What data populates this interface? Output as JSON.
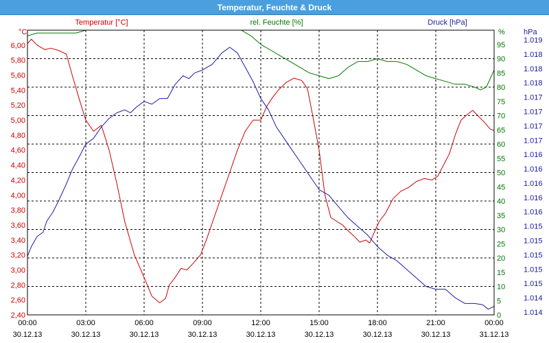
{
  "window": {
    "title": "Temperatur, Feuchte & Druck"
  },
  "chart_data": {
    "type": "line",
    "grid": true,
    "x_ticks": [
      {
        "time": "00:00",
        "date": "30.12.13"
      },
      {
        "time": "03:00",
        "date": "30.12.13"
      },
      {
        "time": "06:00",
        "date": "30.12.13"
      },
      {
        "time": "09:00",
        "date": "30.12.13"
      },
      {
        "time": "12:00",
        "date": "30.12.13"
      },
      {
        "time": "15:00",
        "date": "30.12.13"
      },
      {
        "time": "18:00",
        "date": "30.12.13"
      },
      {
        "time": "21:00",
        "date": "30.12.13"
      },
      {
        "time": "00:00",
        "date": "31.12.13"
      }
    ],
    "axes": {
      "temperature": {
        "unit": "°C",
        "label": "Temperatur [°C]",
        "color": "#cc0000",
        "ylim": [
          2.4,
          6.2
        ],
        "ticks": [
          "2,40",
          "2,60",
          "2,80",
          "3,00",
          "3,20",
          "3,40",
          "3,60",
          "3,80",
          "4,00",
          "4,20",
          "4,40",
          "4,60",
          "4,80",
          "5,00",
          "5,20",
          "5,40",
          "5,60",
          "5,80",
          "6,00"
        ]
      },
      "humidity": {
        "unit": "%",
        "label": "rel. Feuchte [%]",
        "color": "#007700",
        "ylim": [
          0,
          100
        ],
        "ticks": [
          "0",
          "5",
          "10",
          "15",
          "20",
          "25",
          "30",
          "35",
          "40",
          "45",
          "50",
          "55",
          "60",
          "65",
          "70",
          "75",
          "80",
          "85",
          "90",
          "95"
        ]
      },
      "pressure": {
        "unit": "hPa",
        "label": "Druck [hPa]",
        "color": "#1a1aa0",
        "ylim": [
          1014.0,
          1019.0
        ],
        "ticks": [
          "1.014",
          "1.014",
          "1.015",
          "1.015",
          "1.015",
          "1.015",
          "1.015",
          "1.016",
          "1.016",
          "1.016",
          "1.016",
          "1.016",
          "1.017",
          "1.017",
          "1.017",
          "1.017",
          "1.018",
          "1.018",
          "1.018",
          "1.019"
        ]
      }
    },
    "series": [
      {
        "name": "Temperatur [°C]",
        "axis": "temperature",
        "color": "#cc0000",
        "x": [
          0,
          0.2,
          0.5,
          0.9,
          1.2,
          1.6,
          2.0,
          2.3,
          2.7,
          3.0,
          3.4,
          3.8,
          4.2,
          4.6,
          5.0,
          5.5,
          6.0,
          6.4,
          6.8,
          7.1,
          7.3,
          7.6,
          7.9,
          8.2,
          8.5,
          8.9,
          9.2,
          9.6,
          10.0,
          10.4,
          10.8,
          11.2,
          11.6,
          12.0,
          12.3,
          12.6,
          12.9,
          13.3,
          13.7,
          14.1,
          14.4,
          14.7,
          15.0,
          15.3,
          15.6,
          15.9,
          16.2,
          16.5,
          16.8,
          17.1,
          17.4,
          17.6,
          17.8,
          18.1,
          18.4,
          18.8,
          19.2,
          19.6,
          20.0,
          20.4,
          20.8,
          21.1,
          21.4,
          21.7,
          22.0,
          22.3,
          22.6,
          22.9,
          23.2,
          23.5,
          23.8,
          24.0
        ],
        "y": [
          6.02,
          6.08,
          6.0,
          5.94,
          5.96,
          5.93,
          5.88,
          5.6,
          5.25,
          5.0,
          4.85,
          4.93,
          4.6,
          4.15,
          3.65,
          3.2,
          2.9,
          2.65,
          2.56,
          2.62,
          2.8,
          2.9,
          3.02,
          3.0,
          3.08,
          3.2,
          3.4,
          3.7,
          4.0,
          4.3,
          4.6,
          4.85,
          5.0,
          5.0,
          5.18,
          5.3,
          5.4,
          5.5,
          5.56,
          5.53,
          5.42,
          5.02,
          4.6,
          4.0,
          3.7,
          3.65,
          3.6,
          3.52,
          3.45,
          3.37,
          3.4,
          3.36,
          3.48,
          3.65,
          3.75,
          3.95,
          4.05,
          4.1,
          4.18,
          4.22,
          4.2,
          4.25,
          4.4,
          4.55,
          4.8,
          5.0,
          5.07,
          5.13,
          5.05,
          4.97,
          4.88,
          4.86
        ]
      },
      {
        "name": "rel. Feuchte [%]",
        "axis": "humidity",
        "color": "#007700",
        "x": [
          0,
          0.5,
          1.0,
          1.5,
          2.0,
          2.5,
          3.0,
          3.3,
          3.6,
          4.0,
          5.0,
          6.0,
          7.0,
          8.0,
          9.0,
          10.0,
          11.0,
          11.5,
          12.0,
          12.5,
          13.0,
          13.5,
          14.0,
          14.5,
          15.0,
          15.5,
          16.0,
          16.5,
          17.0,
          17.5,
          18.0,
          18.5,
          19.0,
          19.5,
          20.0,
          20.5,
          21.0,
          21.5,
          22.0,
          22.5,
          23.0,
          23.3,
          23.6,
          24.0
        ],
        "y": [
          98,
          99,
          99,
          99,
          99,
          99,
          100,
          101,
          102,
          103,
          103,
          103,
          103,
          103,
          103,
          103,
          100,
          98,
          95,
          93,
          91,
          89,
          87,
          85,
          84,
          83,
          84,
          87,
          89,
          89,
          90,
          89,
          89,
          88,
          86,
          84,
          83,
          82,
          81,
          81,
          80,
          79,
          80,
          86
        ]
      },
      {
        "name": "Druck [hPa]",
        "axis": "pressure",
        "color": "#1a1aa0",
        "x": [
          0,
          0.2,
          0.5,
          0.8,
          1.0,
          1.3,
          1.6,
          2.0,
          2.3,
          2.7,
          3.0,
          3.4,
          3.8,
          4.2,
          4.6,
          5.0,
          5.3,
          5.6,
          6.0,
          6.4,
          6.8,
          7.2,
          7.6,
          8.0,
          8.3,
          8.6,
          9.0,
          9.5,
          10.0,
          10.4,
          10.8,
          11.2,
          11.6,
          12.0,
          12.4,
          12.8,
          13.2,
          13.6,
          14.0,
          14.5,
          15.0,
          15.5,
          16.0,
          16.5,
          17.0,
          17.5,
          18.0,
          18.5,
          19.0,
          19.5,
          20.0,
          20.5,
          21.0,
          21.5,
          22.0,
          22.5,
          23.0,
          23.4,
          23.7,
          24.0
        ],
        "y": [
          1015.03,
          1015.2,
          1015.38,
          1015.45,
          1015.65,
          1015.8,
          1016.0,
          1016.3,
          1016.55,
          1016.8,
          1017.0,
          1017.1,
          1017.3,
          1017.45,
          1017.55,
          1017.6,
          1017.55,
          1017.65,
          1017.75,
          1017.7,
          1017.8,
          1017.8,
          1018.05,
          1018.2,
          1018.15,
          1018.25,
          1018.3,
          1018.4,
          1018.6,
          1018.7,
          1018.6,
          1018.35,
          1018.1,
          1017.8,
          1017.6,
          1017.3,
          1017.1,
          1016.9,
          1016.7,
          1016.45,
          1016.2,
          1016.1,
          1015.9,
          1015.7,
          1015.55,
          1015.4,
          1015.2,
          1015.05,
          1014.95,
          1014.8,
          1014.65,
          1014.5,
          1014.45,
          1014.45,
          1014.3,
          1014.2,
          1014.2,
          1014.18,
          1014.1,
          1014.15
        ]
      }
    ]
  }
}
